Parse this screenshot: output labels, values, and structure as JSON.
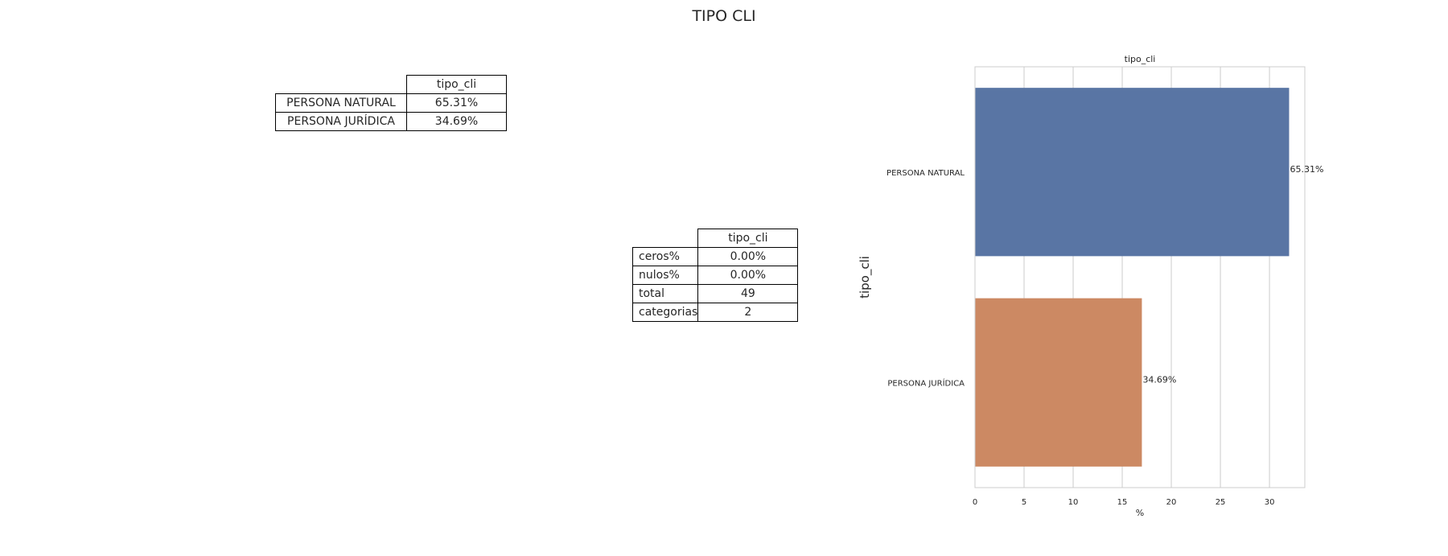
{
  "figure_title": "TIPO CLI",
  "freq_table": {
    "header": "tipo_cli",
    "rows": [
      {
        "label": "PERSONA NATURAL",
        "value": "65.31%"
      },
      {
        "label": "PERSONA JURÍDICA",
        "value": "34.69%"
      }
    ]
  },
  "stats_table": {
    "header": "tipo_cli",
    "rows": [
      {
        "label": "ceros%",
        "value": "0.00%"
      },
      {
        "label": "nulos%",
        "value": "0.00%"
      },
      {
        "label": "total",
        "value": "49"
      },
      {
        "label": "categorias",
        "value": "2"
      }
    ]
  },
  "chart_data": {
    "type": "bar",
    "orientation": "horizontal",
    "title": "tipo_cli",
    "xlabel": "%",
    "ylabel": "tipo_cli",
    "categories": [
      "PERSONA NATURAL",
      "PERSONA JURÍDICA"
    ],
    "values": [
      32.0,
      17.0
    ],
    "bar_labels": [
      "65.31%",
      "34.69%"
    ],
    "colors": [
      "#5975a4",
      "#cc8963"
    ],
    "xlim": [
      0,
      33.6
    ],
    "xticks": [
      0,
      5,
      10,
      15,
      20,
      25,
      30
    ],
    "grid": true
  }
}
